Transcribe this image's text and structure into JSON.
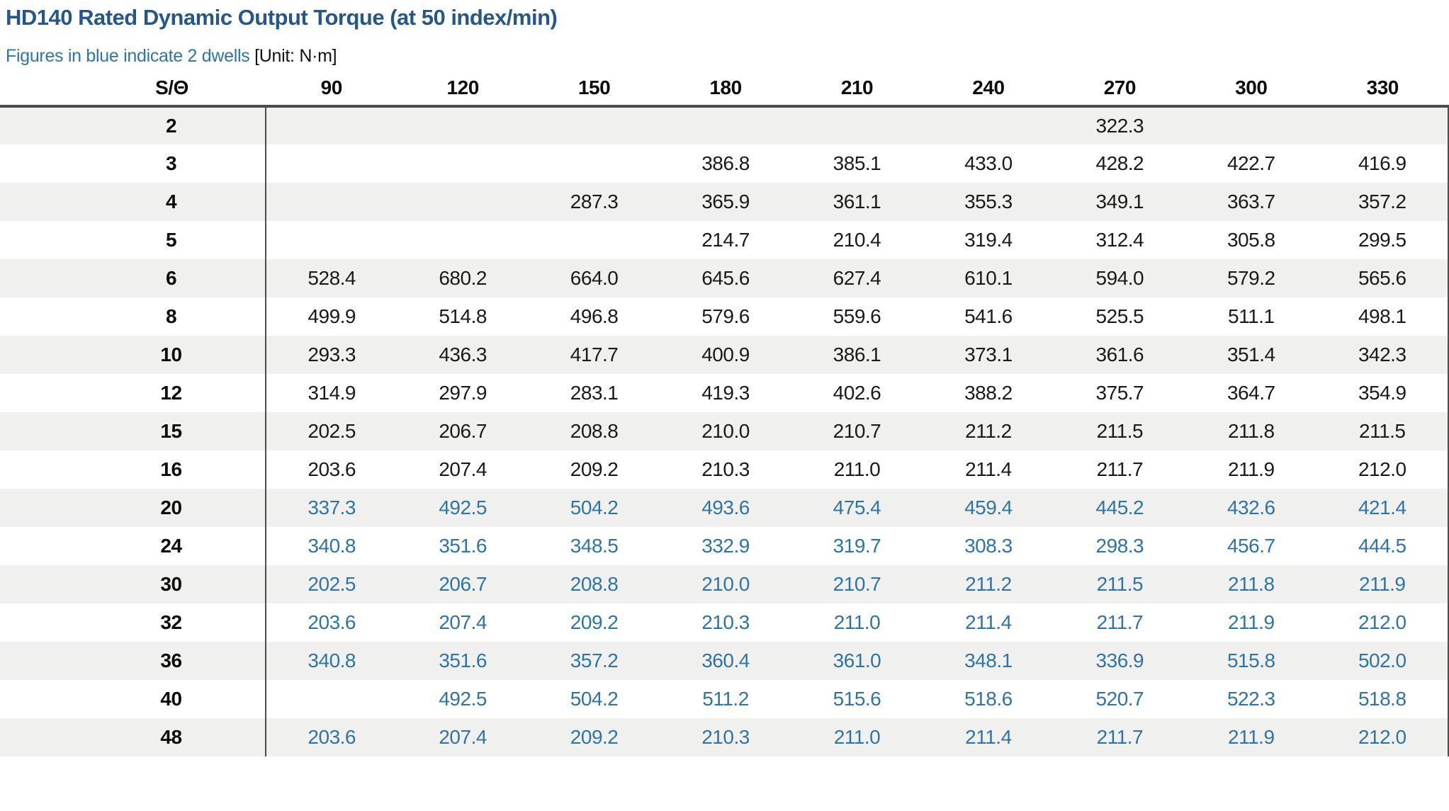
{
  "title": "HD140 Rated Dynamic Output Torque (at 50 index/min)",
  "subtitle": {
    "blue_note": "Figures in blue indicate 2 dwells",
    "unit_label": "[Unit: N·m]"
  },
  "colors": {
    "title_blue": "#25578b",
    "note_blue": "#2e74ad",
    "dwell_blue": "#2e74a8",
    "row_alt_gray": "#f0f0ef",
    "rule_dark": "#4d4d4d"
  },
  "table": {
    "corner_header": "S/Θ",
    "column_headers": [
      "90",
      "120",
      "150",
      "180",
      "210",
      "240",
      "270",
      "300",
      "330"
    ],
    "rows": [
      {
        "s": "2",
        "two_dwells": false,
        "values": [
          "",
          "",
          "",
          "",
          "",
          "",
          "322.3",
          "",
          ""
        ]
      },
      {
        "s": "3",
        "two_dwells": false,
        "values": [
          "",
          "",
          "",
          "386.8",
          "385.1",
          "433.0",
          "428.2",
          "422.7",
          "416.9"
        ]
      },
      {
        "s": "4",
        "two_dwells": false,
        "values": [
          "",
          "",
          "287.3",
          "365.9",
          "361.1",
          "355.3",
          "349.1",
          "363.7",
          "357.2"
        ]
      },
      {
        "s": "5",
        "two_dwells": false,
        "values": [
          "",
          "",
          "",
          "214.7",
          "210.4",
          "319.4",
          "312.4",
          "305.8",
          "299.5"
        ]
      },
      {
        "s": "6",
        "two_dwells": false,
        "values": [
          "528.4",
          "680.2",
          "664.0",
          "645.6",
          "627.4",
          "610.1",
          "594.0",
          "579.2",
          "565.6"
        ]
      },
      {
        "s": "8",
        "two_dwells": false,
        "values": [
          "499.9",
          "514.8",
          "496.8",
          "579.6",
          "559.6",
          "541.6",
          "525.5",
          "511.1",
          "498.1"
        ]
      },
      {
        "s": "10",
        "two_dwells": false,
        "values": [
          "293.3",
          "436.3",
          "417.7",
          "400.9",
          "386.1",
          "373.1",
          "361.6",
          "351.4",
          "342.3"
        ]
      },
      {
        "s": "12",
        "two_dwells": false,
        "values": [
          "314.9",
          "297.9",
          "283.1",
          "419.3",
          "402.6",
          "388.2",
          "375.7",
          "364.7",
          "354.9"
        ]
      },
      {
        "s": "15",
        "two_dwells": false,
        "values": [
          "202.5",
          "206.7",
          "208.8",
          "210.0",
          "210.7",
          "211.2",
          "211.5",
          "211.8",
          "211.5"
        ]
      },
      {
        "s": "16",
        "two_dwells": false,
        "values": [
          "203.6",
          "207.4",
          "209.2",
          "210.3",
          "211.0",
          "211.4",
          "211.7",
          "211.9",
          "212.0"
        ]
      },
      {
        "s": "20",
        "two_dwells": true,
        "values": [
          "337.3",
          "492.5",
          "504.2",
          "493.6",
          "475.4",
          "459.4",
          "445.2",
          "432.6",
          "421.4"
        ]
      },
      {
        "s": "24",
        "two_dwells": true,
        "values": [
          "340.8",
          "351.6",
          "348.5",
          "332.9",
          "319.7",
          "308.3",
          "298.3",
          "456.7",
          "444.5"
        ]
      },
      {
        "s": "30",
        "two_dwells": true,
        "values": [
          "202.5",
          "206.7",
          "208.8",
          "210.0",
          "210.7",
          "211.2",
          "211.5",
          "211.8",
          "211.9"
        ]
      },
      {
        "s": "32",
        "two_dwells": true,
        "values": [
          "203.6",
          "207.4",
          "209.2",
          "210.3",
          "211.0",
          "211.4",
          "211.7",
          "211.9",
          "212.0"
        ]
      },
      {
        "s": "36",
        "two_dwells": true,
        "values": [
          "340.8",
          "351.6",
          "357.2",
          "360.4",
          "361.0",
          "348.1",
          "336.9",
          "515.8",
          "502.0"
        ]
      },
      {
        "s": "40",
        "two_dwells": true,
        "values": [
          "",
          "492.5",
          "504.2",
          "511.2",
          "515.6",
          "518.6",
          "520.7",
          "522.3",
          "518.8"
        ]
      },
      {
        "s": "48",
        "two_dwells": true,
        "values": [
          "203.6",
          "207.4",
          "209.2",
          "210.3",
          "211.0",
          "211.4",
          "211.7",
          "211.9",
          "212.0"
        ]
      }
    ]
  }
}
